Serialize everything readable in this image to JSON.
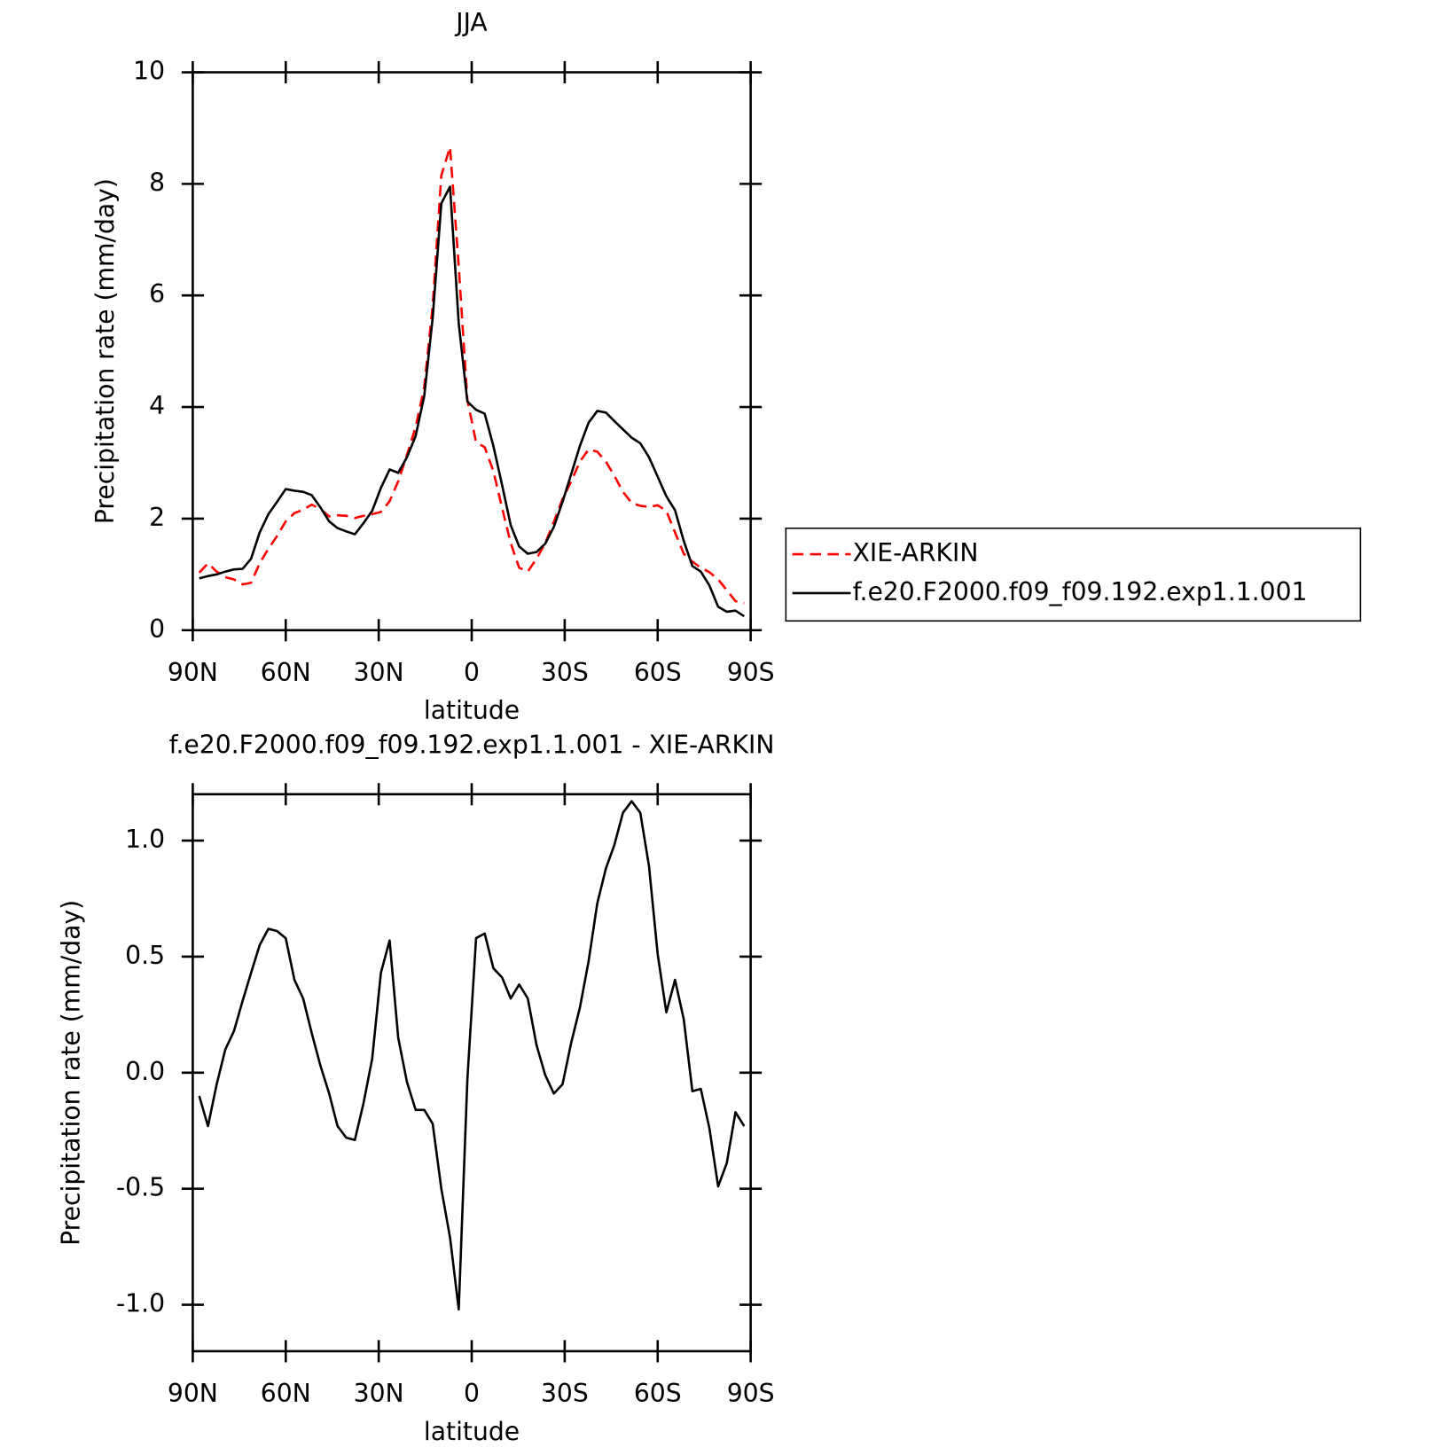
{
  "chart_data": [
    {
      "type": "line",
      "title": "JJA",
      "xlabel": "latitude",
      "ylabel": "Precipitation rate (mm/day)",
      "x": [
        87.9,
        85.1,
        82.3,
        79.5,
        76.7,
        73.9,
        71.2,
        68.4,
        65.6,
        62.8,
        60.0,
        57.2,
        54.4,
        51.6,
        48.8,
        46.0,
        43.3,
        40.5,
        37.7,
        34.9,
        32.1,
        29.3,
        26.5,
        23.7,
        20.9,
        18.1,
        15.3,
        12.6,
        9.8,
        7.0,
        4.2,
        1.4,
        -1.4,
        -4.2,
        -7.0,
        -9.8,
        -12.6,
        -15.3,
        -18.1,
        -20.9,
        -23.7,
        -26.5,
        -29.3,
        -32.1,
        -34.9,
        -37.7,
        -40.5,
        -43.3,
        -46.0,
        -48.8,
        -51.6,
        -54.4,
        -57.2,
        -60.0,
        -62.8,
        -65.6,
        -68.4,
        -71.2,
        -73.9,
        -76.7,
        -79.5,
        -82.3,
        -85.1,
        -87.9
      ],
      "series": [
        {
          "name": "XIE-ARKIN",
          "color": "#ff0000",
          "line_style": "dashed",
          "values": [
            1.03,
            1.2,
            1.05,
            0.95,
            0.91,
            0.82,
            0.85,
            1.2,
            1.46,
            1.69,
            1.95,
            2.1,
            2.16,
            2.25,
            2.17,
            2.04,
            2.06,
            2.05,
            2.01,
            2.05,
            2.08,
            2.12,
            2.31,
            2.67,
            3.14,
            3.64,
            4.36,
            5.82,
            8.15,
            8.66,
            6.52,
            4.13,
            3.37,
            3.28,
            2.85,
            2.19,
            1.56,
            1.12,
            1.05,
            1.28,
            1.56,
            1.94,
            2.35,
            2.67,
            3.02,
            3.24,
            3.2,
            3.02,
            2.77,
            2.48,
            2.28,
            2.23,
            2.21,
            2.24,
            2.14,
            1.75,
            1.37,
            1.23,
            1.12,
            1.04,
            0.91,
            0.72,
            0.52,
            0.48
          ]
        },
        {
          "name": "f.e20.F2000.f09_f09.192.exp1.1.001",
          "color": "#000000",
          "line_style": "solid",
          "values": [
            0.93,
            0.97,
            1.0,
            1.05,
            1.09,
            1.1,
            1.28,
            1.75,
            2.08,
            2.3,
            2.53,
            2.5,
            2.48,
            2.42,
            2.2,
            1.95,
            1.83,
            1.77,
            1.72,
            1.92,
            2.14,
            2.55,
            2.88,
            2.82,
            3.1,
            3.48,
            4.2,
            5.6,
            7.65,
            7.95,
            5.5,
            4.1,
            3.95,
            3.88,
            3.3,
            2.6,
            1.88,
            1.5,
            1.37,
            1.4,
            1.55,
            1.85,
            2.3,
            2.8,
            3.3,
            3.72,
            3.93,
            3.9,
            3.75,
            3.6,
            3.45,
            3.35,
            3.1,
            2.75,
            2.4,
            2.15,
            1.6,
            1.15,
            1.05,
            0.8,
            0.42,
            0.33,
            0.35,
            0.25
          ]
        }
      ],
      "xlim": [
        90,
        -90
      ],
      "xticks": [
        {
          "value": 90,
          "label": "90N"
        },
        {
          "value": 60,
          "label": "60N"
        },
        {
          "value": 30,
          "label": "30N"
        },
        0,
        {
          "value": -30,
          "label": "30S"
        },
        {
          "value": -60,
          "label": "60S"
        },
        {
          "value": -90,
          "label": "90S"
        }
      ],
      "ylim": [
        0,
        10
      ],
      "yticks": [
        0,
        2,
        4,
        6,
        8,
        10
      ],
      "legend": "right"
    },
    {
      "type": "line",
      "title": "f.e20.F2000.f09_f09.192.exp1.1.001 - XIE-ARKIN",
      "xlabel": "latitude",
      "ylabel": "Precipitation rate (mm/day)",
      "x": [
        87.9,
        85.1,
        82.3,
        79.5,
        76.7,
        73.9,
        71.2,
        68.4,
        65.6,
        62.8,
        60.0,
        57.2,
        54.4,
        51.6,
        48.8,
        46.0,
        43.3,
        40.5,
        37.7,
        34.9,
        32.1,
        29.3,
        26.5,
        23.7,
        20.9,
        18.1,
        15.3,
        12.6,
        9.8,
        7.0,
        4.2,
        1.4,
        -1.4,
        -4.2,
        -7.0,
        -9.8,
        -12.6,
        -15.3,
        -18.1,
        -20.9,
        -23.7,
        -26.5,
        -29.3,
        -32.1,
        -34.9,
        -37.7,
        -40.5,
        -43.3,
        -46.0,
        -48.8,
        -51.6,
        -54.4,
        -57.2,
        -60.0,
        -62.8,
        -65.6,
        -68.4,
        -71.2,
        -73.9,
        -76.7,
        -79.5,
        -82.3,
        -85.1,
        -87.9
      ],
      "values": [
        -0.1,
        -0.23,
        -0.05,
        0.1,
        0.18,
        0.31,
        0.43,
        0.55,
        0.62,
        0.61,
        0.58,
        0.4,
        0.32,
        0.17,
        0.03,
        -0.09,
        -0.23,
        -0.28,
        -0.29,
        -0.13,
        0.06,
        0.43,
        0.57,
        0.15,
        -0.04,
        -0.16,
        -0.16,
        -0.22,
        -0.5,
        -0.71,
        -1.02,
        -0.03,
        0.58,
        0.6,
        0.45,
        0.41,
        0.32,
        0.38,
        0.32,
        0.12,
        -0.01,
        -0.09,
        -0.05,
        0.13,
        0.28,
        0.48,
        0.73,
        0.88,
        0.98,
        1.12,
        1.17,
        1.12,
        0.89,
        0.51,
        0.26,
        0.4,
        0.23,
        -0.08,
        -0.07,
        -0.24,
        -0.49,
        -0.39,
        -0.17,
        -0.23
      ],
      "color": "#000000",
      "xlim": [
        90,
        -90
      ],
      "xticks": [
        {
          "value": 90,
          "label": "90N"
        },
        {
          "value": 60,
          "label": "60N"
        },
        {
          "value": 30,
          "label": "30N"
        },
        0,
        {
          "value": -30,
          "label": "30S"
        },
        {
          "value": -60,
          "label": "60S"
        },
        {
          "value": -90,
          "label": "90S"
        }
      ],
      "ylim": [
        -1.2,
        1.2
      ],
      "yticks": [
        {
          "value": -1.0,
          "label": "-1.0"
        },
        {
          "value": -0.5,
          "label": "-0.5"
        },
        {
          "value": 0.0,
          "label": "0.0"
        },
        {
          "value": 0.5,
          "label": "0.5"
        },
        {
          "value": 1.0,
          "label": "1.0"
        }
      ]
    }
  ]
}
